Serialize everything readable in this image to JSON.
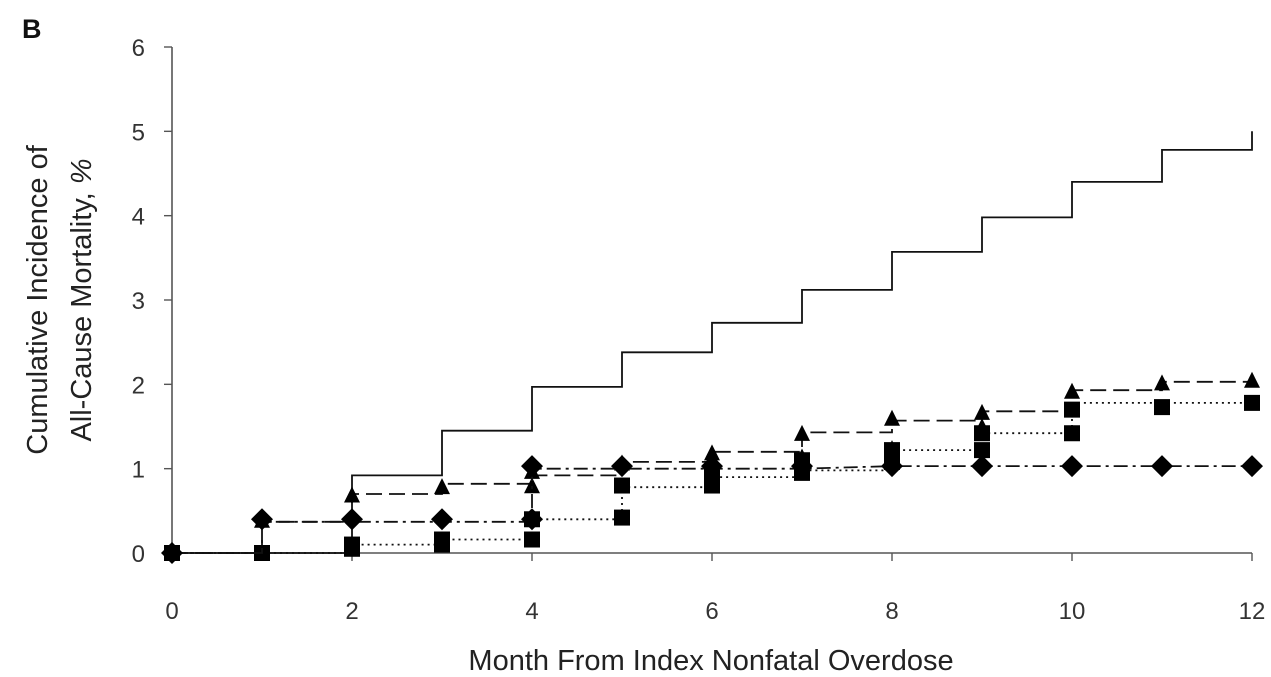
{
  "chart_data": {
    "type": "line",
    "panel_label": "B",
    "title": "",
    "xlabel": "Month From Index Nonfatal Overdose",
    "ylabel_lines": [
      "Cumulative Incidence of",
      "All-Cause Mortality, "
    ],
    "ylabel_unit": "%",
    "xlim": [
      0,
      12
    ],
    "ylim": [
      0,
      6
    ],
    "x_ticks": [
      0,
      2,
      4,
      6,
      8,
      10,
      12
    ],
    "y_ticks": [
      0,
      1,
      2,
      3,
      4,
      5,
      6
    ],
    "grid": false,
    "legend": "none",
    "series": [
      {
        "line_style": "solid",
        "marker": "none",
        "step_points": [
          [
            0,
            0
          ],
          [
            2,
            0
          ],
          [
            2,
            0.92
          ],
          [
            3,
            0.92
          ],
          [
            3,
            1.45
          ],
          [
            4,
            1.45
          ],
          [
            4,
            1.97
          ],
          [
            5,
            1.97
          ],
          [
            5,
            2.38
          ],
          [
            6,
            2.38
          ],
          [
            6,
            2.73
          ],
          [
            7,
            2.73
          ],
          [
            7,
            3.12
          ],
          [
            8,
            3.12
          ],
          [
            8,
            3.57
          ],
          [
            9,
            3.57
          ],
          [
            9,
            3.98
          ],
          [
            10,
            3.98
          ],
          [
            10,
            4.4
          ],
          [
            11,
            4.4
          ],
          [
            11,
            4.78
          ],
          [
            12,
            4.78
          ],
          [
            12,
            5.0
          ]
        ]
      },
      {
        "line_style": "dashed",
        "marker": "triangle",
        "step_points": [
          [
            0,
            0
          ],
          [
            1,
            0
          ],
          [
            1,
            0.37
          ],
          [
            2,
            0.37
          ],
          [
            2,
            0.7
          ],
          [
            3,
            0.7
          ],
          [
            3,
            0.82
          ],
          [
            4,
            0.82
          ],
          [
            4,
            0.92
          ],
          [
            5,
            0.92
          ],
          [
            5,
            1.08
          ],
          [
            6,
            1.08
          ],
          [
            6,
            1.2
          ],
          [
            7,
            1.2
          ],
          [
            7,
            1.43
          ],
          [
            8,
            1.43
          ],
          [
            8,
            1.57
          ],
          [
            9,
            1.57
          ],
          [
            9,
            1.68
          ],
          [
            10,
            1.68
          ],
          [
            10,
            1.93
          ],
          [
            11,
            1.93
          ],
          [
            11,
            2.03
          ],
          [
            12,
            2.03
          ]
        ],
        "markers": [
          [
            0,
            0
          ],
          [
            1,
            0.37
          ],
          [
            2,
            0.67
          ],
          [
            3,
            0.77
          ],
          [
            4,
            0.78
          ],
          [
            4,
            0.95
          ],
          [
            5,
            1.05
          ],
          [
            6,
            1.17
          ],
          [
            6,
            1.06
          ],
          [
            7,
            1.4
          ],
          [
            7,
            1.12
          ],
          [
            8,
            1.58
          ],
          [
            8,
            1.22
          ],
          [
            9,
            1.65
          ],
          [
            9,
            1.48
          ],
          [
            10,
            1.9
          ],
          [
            11,
            2.0
          ],
          [
            12,
            2.03
          ]
        ]
      },
      {
        "line_style": "dotted",
        "marker": "square",
        "step_points": [
          [
            0,
            0
          ],
          [
            2,
            0
          ],
          [
            2,
            0.1
          ],
          [
            3,
            0.1
          ],
          [
            3,
            0.16
          ],
          [
            4,
            0.16
          ],
          [
            4,
            0.4
          ],
          [
            5,
            0.4
          ],
          [
            5,
            0.78
          ],
          [
            6,
            0.78
          ],
          [
            6,
            0.9
          ],
          [
            7,
            0.9
          ],
          [
            7,
            0.98
          ],
          [
            8,
            0.98
          ],
          [
            8,
            1.22
          ],
          [
            9,
            1.22
          ],
          [
            9,
            1.42
          ],
          [
            10,
            1.42
          ],
          [
            10,
            1.78
          ],
          [
            11,
            1.78
          ],
          [
            11,
            1.78
          ],
          [
            12,
            1.78
          ]
        ],
        "markers": [
          [
            0,
            0
          ],
          [
            1,
            0
          ],
          [
            2,
            0.05
          ],
          [
            2,
            0.1
          ],
          [
            3,
            0.1
          ],
          [
            3,
            0.16
          ],
          [
            4,
            0.16
          ],
          [
            4,
            0.4
          ],
          [
            5,
            0.42
          ],
          [
            5,
            0.8
          ],
          [
            6,
            0.8
          ],
          [
            6,
            0.95
          ],
          [
            7,
            0.95
          ],
          [
            7,
            1.1
          ],
          [
            8,
            1.08
          ],
          [
            8,
            1.22
          ],
          [
            9,
            1.22
          ],
          [
            9,
            1.42
          ],
          [
            10,
            1.42
          ],
          [
            10,
            1.7
          ],
          [
            11,
            1.73
          ],
          [
            12,
            1.78
          ]
        ]
      },
      {
        "line_style": "dash-dot",
        "marker": "diamond",
        "step_points": [
          [
            0,
            0
          ],
          [
            1,
            0
          ],
          [
            1,
            0.37
          ],
          [
            2,
            0.37
          ],
          [
            2,
            0.37
          ],
          [
            3,
            0.37
          ],
          [
            3,
            0.37
          ],
          [
            4,
            0.37
          ],
          [
            4,
            1.0
          ],
          [
            5,
            1.0
          ],
          [
            6,
            1.0
          ],
          [
            7,
            1.0
          ],
          [
            8,
            1.03
          ],
          [
            12,
            1.03
          ]
        ],
        "markers": [
          [
            0,
            0
          ],
          [
            1,
            0.4
          ],
          [
            2,
            0.4
          ],
          [
            3,
            0.4
          ],
          [
            4,
            0.4
          ],
          [
            4,
            1.03
          ],
          [
            5,
            1.03
          ],
          [
            6,
            1.03
          ],
          [
            7,
            1.03
          ],
          [
            8,
            1.03
          ],
          [
            9,
            1.03
          ],
          [
            10,
            1.03
          ],
          [
            11,
            1.03
          ],
          [
            12,
            1.03
          ]
        ]
      }
    ]
  }
}
